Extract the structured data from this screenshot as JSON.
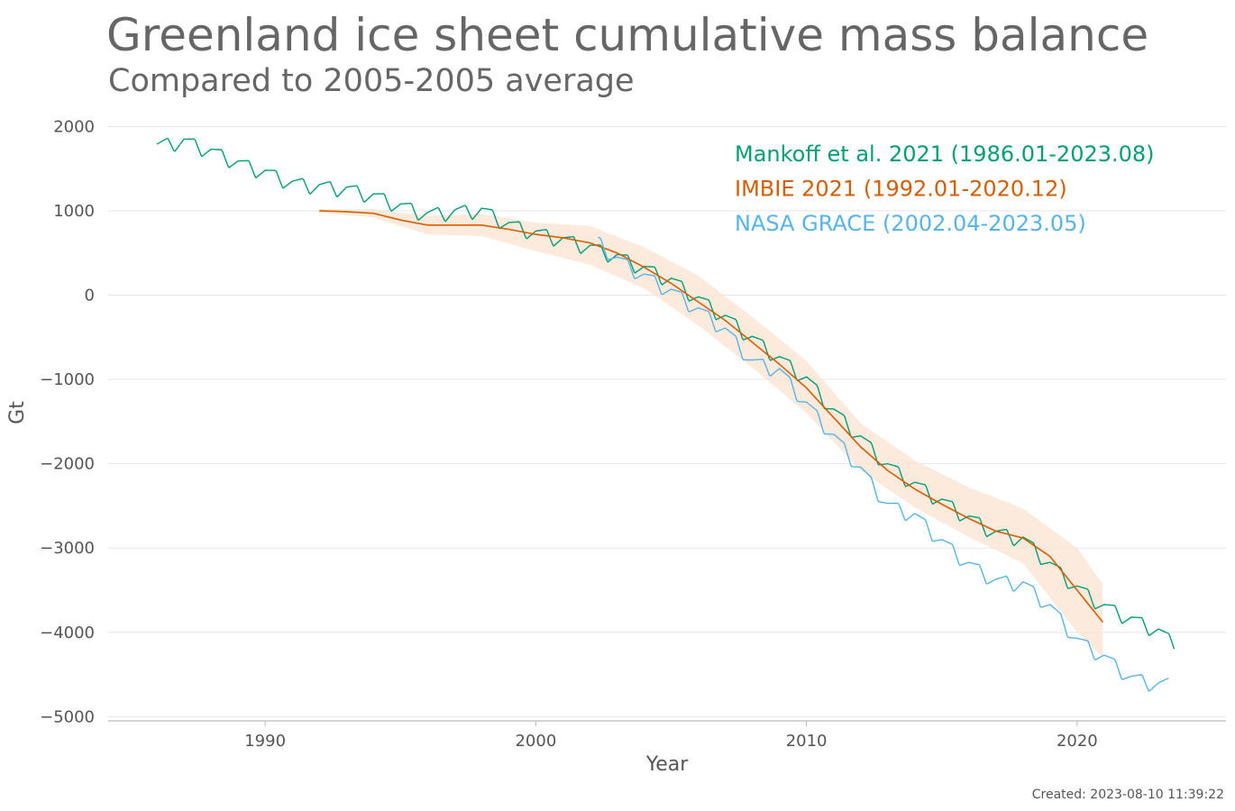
{
  "title": "Greenland ice sheet cumulative mass balance",
  "subtitle": "Compared to 2005-2005 average",
  "created": "Created: 2023-08-10 11:39:22",
  "chart_data": {
    "type": "line",
    "title": "Greenland ice sheet cumulative mass balance",
    "subtitle": "Compared to 2005-2005 average",
    "xlabel": "Year",
    "ylabel": "Gt",
    "xlim": [
      1984.2,
      2025.5
    ],
    "ylim": [
      -5050,
      2100
    ],
    "xticks": [
      1990,
      2000,
      2010,
      2020
    ],
    "yticks": [
      2000,
      1000,
      0,
      -1000,
      -2000,
      -3000,
      -4000,
      -5000
    ],
    "ytick_labels": [
      "2000",
      "1000",
      "0",
      "−1000",
      "−2000",
      "−3000",
      "−4000",
      "−5000"
    ],
    "grid": "horizontal",
    "legend_position": "top-right",
    "series": [
      {
        "name": "Mankoff et al. 2021 (1986.01-2023.08)",
        "color": "#009e73",
        "seasonal_amplitude": 200,
        "trend": [
          [
            1986.0,
            1760
          ],
          [
            1987.0,
            1820
          ],
          [
            1988.0,
            1700
          ],
          [
            1989.0,
            1560
          ],
          [
            1990.0,
            1450
          ],
          [
            1991.0,
            1320
          ],
          [
            1992.0,
            1280
          ],
          [
            1993.0,
            1250
          ],
          [
            1994.0,
            1170
          ],
          [
            1995.0,
            1050
          ],
          [
            1996.0,
            950
          ],
          [
            1997.0,
            980
          ],
          [
            1998.0,
            1000
          ],
          [
            1999.0,
            830
          ],
          [
            2000.0,
            730
          ],
          [
            2001.0,
            650
          ],
          [
            2002.0,
            560
          ],
          [
            2003.0,
            450
          ],
          [
            2004.0,
            310
          ],
          [
            2005.0,
            170
          ],
          [
            2006.0,
            -50
          ],
          [
            2007.0,
            -270
          ],
          [
            2008.0,
            -520
          ],
          [
            2009.0,
            -760
          ],
          [
            2010.0,
            -1000
          ],
          [
            2011.0,
            -1380
          ],
          [
            2012.0,
            -1700
          ],
          [
            2013.0,
            -2030
          ],
          [
            2014.0,
            -2250
          ],
          [
            2015.0,
            -2450
          ],
          [
            2016.0,
            -2650
          ],
          [
            2017.0,
            -2830
          ],
          [
            2018.0,
            -2900
          ],
          [
            2019.0,
            -3200
          ],
          [
            2020.0,
            -3480
          ],
          [
            2021.0,
            -3700
          ],
          [
            2022.0,
            -3850
          ],
          [
            2023.0,
            -3990
          ],
          [
            2023.6,
            -4150
          ]
        ]
      },
      {
        "name": "IMBIE 2021 (1992.01-2020.12)",
        "color": "#d55e00",
        "band_color": "#fbe3d1",
        "data": [
          [
            1992.0,
            1000
          ],
          [
            1993.0,
            990
          ],
          [
            1994.0,
            970
          ],
          [
            1995.0,
            890
          ],
          [
            1996.0,
            830
          ],
          [
            1997.0,
            830
          ],
          [
            1998.0,
            830
          ],
          [
            1999.0,
            780
          ],
          [
            2000.0,
            720
          ],
          [
            2001.0,
            680
          ],
          [
            2002.0,
            620
          ],
          [
            2003.0,
            500
          ],
          [
            2004.0,
            330
          ],
          [
            2005.0,
            140
          ],
          [
            2006.0,
            -80
          ],
          [
            2007.0,
            -300
          ],
          [
            2008.0,
            -560
          ],
          [
            2009.0,
            -820
          ],
          [
            2010.0,
            -1100
          ],
          [
            2011.0,
            -1450
          ],
          [
            2012.0,
            -1800
          ],
          [
            2013.0,
            -2080
          ],
          [
            2014.0,
            -2300
          ],
          [
            2015.0,
            -2480
          ],
          [
            2016.0,
            -2650
          ],
          [
            2017.0,
            -2800
          ],
          [
            2018.0,
            -2880
          ],
          [
            2019.0,
            -3100
          ],
          [
            2020.0,
            -3500
          ],
          [
            2020.95,
            -3880
          ]
        ],
        "lower": [
          [
            1992.0,
            980
          ],
          [
            1994.0,
            920
          ],
          [
            1996.0,
            720
          ],
          [
            1998.0,
            700
          ],
          [
            2000.0,
            520
          ],
          [
            2002.0,
            360
          ],
          [
            2004.0,
            80
          ],
          [
            2006.0,
            -360
          ],
          [
            2008.0,
            -860
          ],
          [
            2010.0,
            -1400
          ],
          [
            2012.0,
            -2080
          ],
          [
            2014.0,
            -2520
          ],
          [
            2016.0,
            -2870
          ],
          [
            2018.0,
            -3180
          ],
          [
            2020.0,
            -4000
          ],
          [
            2020.95,
            -4300
          ]
        ],
        "upper": [
          [
            1992.0,
            1020
          ],
          [
            1994.0,
            1020
          ],
          [
            1996.0,
            940
          ],
          [
            1998.0,
            960
          ],
          [
            2000.0,
            860
          ],
          [
            2002.0,
            820
          ],
          [
            2004.0,
            570
          ],
          [
            2006.0,
            230
          ],
          [
            2008.0,
            -260
          ],
          [
            2010.0,
            -780
          ],
          [
            2012.0,
            -1520
          ],
          [
            2014.0,
            -1960
          ],
          [
            2016.0,
            -2280
          ],
          [
            2018.0,
            -2530
          ],
          [
            2020.0,
            -3000
          ],
          [
            2020.95,
            -3430
          ]
        ]
      },
      {
        "name": "NASA GRACE (2002.04-2023.05)",
        "color": "#56b4e9",
        "seasonal_amplitude": 200,
        "trend": [
          [
            2002.3,
            620
          ],
          [
            2003.0,
            420
          ],
          [
            2004.0,
            220
          ],
          [
            2005.0,
            40
          ],
          [
            2006.0,
            -180
          ],
          [
            2007.0,
            -420
          ],
          [
            2008.0,
            -800
          ],
          [
            2009.0,
            -900
          ],
          [
            2010.0,
            -1300
          ],
          [
            2011.0,
            -1680
          ],
          [
            2012.0,
            -2070
          ],
          [
            2013.0,
            -2500
          ],
          [
            2014.0,
            -2620
          ],
          [
            2015.0,
            -2930
          ],
          [
            2016.0,
            -3200
          ],
          [
            2017.0,
            -3400
          ],
          [
            2018.0,
            -3430
          ],
          [
            2019.0,
            -3700
          ],
          [
            2020.0,
            -4100
          ],
          [
            2021.0,
            -4300
          ],
          [
            2022.0,
            -4550
          ],
          [
            2023.0,
            -4630
          ],
          [
            2023.4,
            -4620
          ]
        ]
      }
    ]
  }
}
